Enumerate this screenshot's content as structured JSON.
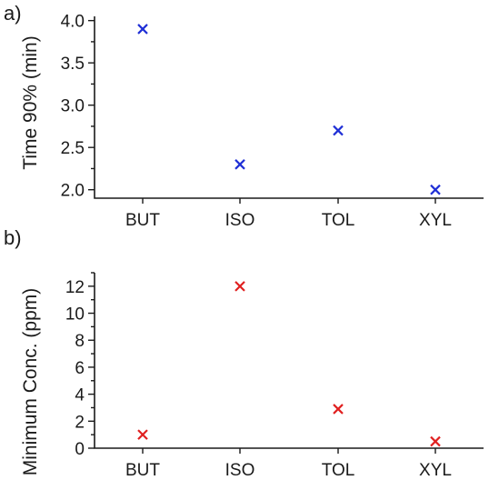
{
  "chart_data": [
    {
      "type": "scatter",
      "panel": "a)",
      "categories": [
        "BUT",
        "ISO",
        "TOL",
        "XYL"
      ],
      "values": [
        3.9,
        2.3,
        2.7,
        2.0
      ],
      "xlabel": "",
      "ylabel": "Time 90% (min)",
      "ylim": [
        1.9,
        4.05
      ],
      "yticks": [
        2.0,
        2.5,
        3.0,
        3.5,
        4.0
      ],
      "ytick_labels": [
        "2.0",
        "2.5",
        "3.0",
        "3.5",
        "4.0"
      ],
      "marker": "x",
      "color": "#1f2fd6",
      "grid": false
    },
    {
      "type": "scatter",
      "panel": "b)",
      "categories": [
        "BUT",
        "ISO",
        "TOL",
        "XYL"
      ],
      "values": [
        1.0,
        12.0,
        2.9,
        0.5
      ],
      "xlabel": "",
      "ylabel": "Minimum Conc. (ppm)",
      "ylim": [
        0,
        13
      ],
      "yticks": [
        0,
        2,
        4,
        6,
        8,
        10,
        12
      ],
      "ytick_labels": [
        "0",
        "2",
        "4",
        "6",
        "8",
        "10",
        "12"
      ],
      "marker": "x",
      "color": "#e02020",
      "grid": false
    }
  ]
}
